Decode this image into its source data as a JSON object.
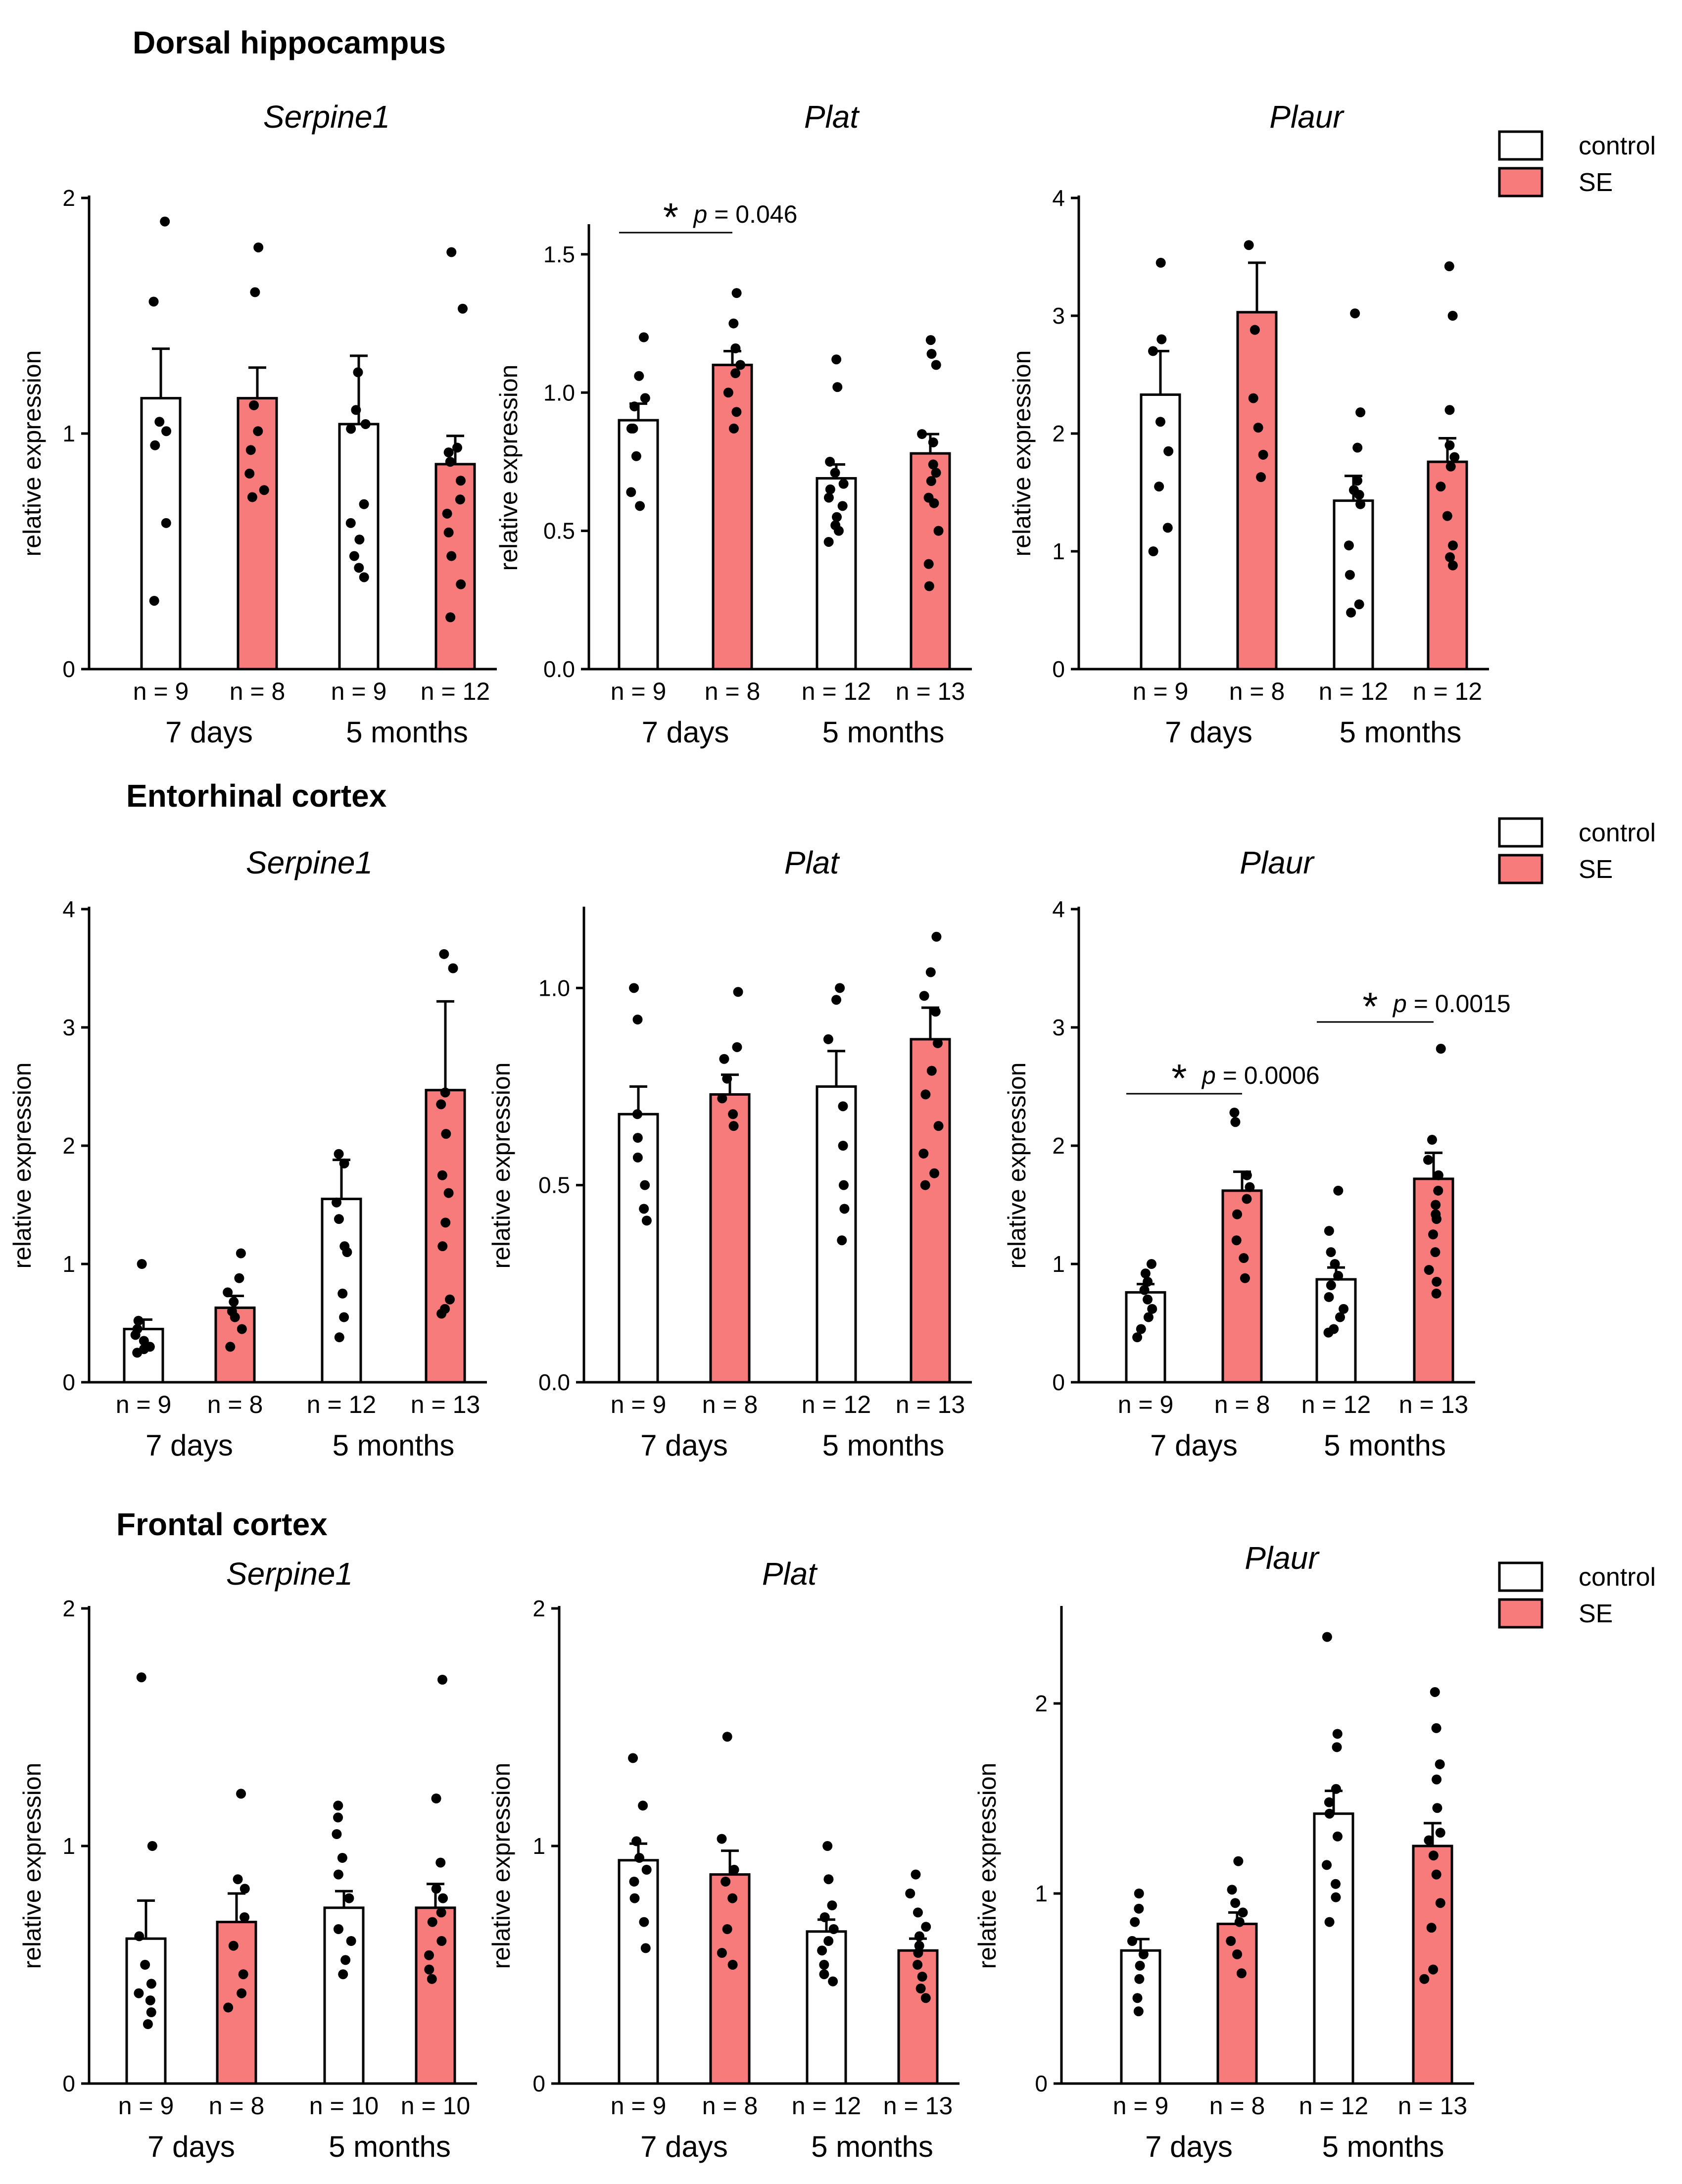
{
  "colors": {
    "control_fill": "#ffffff",
    "se_fill": "#f77b7b",
    "stroke": "#000000",
    "dot": "#000000"
  },
  "legend": {
    "control": "control",
    "se": "SE"
  },
  "chart_data": [
    {
      "type": "bar",
      "region": "Dorsal hippocampus",
      "title": "Serpine1",
      "ylabel": "relative expression",
      "ylim": [
        0,
        2
      ],
      "yticks": [
        "0",
        "1",
        "2"
      ],
      "categories": [
        "7 days",
        "5 months"
      ],
      "n_labels": [
        "n = 9",
        "n = 8",
        "n = 9",
        "n = 12"
      ],
      "series": [
        {
          "name": "control",
          "values": [
            1.15,
            1.04
          ],
          "sem": [
            0.21,
            0.29
          ]
        },
        {
          "name": "SE",
          "values": [
            1.15,
            0.87
          ],
          "sem": [
            0.13,
            0.12
          ]
        }
      ],
      "points": [
        [
          1.9,
          1.56,
          1.05,
          1.01,
          0.95,
          0.62,
          0.29
        ],
        [
          1.79,
          1.6,
          1.12,
          1.01,
          0.93,
          0.83,
          0.76,
          0.73
        ],
        [
          1.26,
          1.1,
          1.04,
          1.02,
          0.7,
          0.62,
          0.55,
          0.48,
          0.43,
          0.39
        ],
        [
          1.77,
          1.53,
          0.94,
          0.92,
          0.88,
          0.8,
          0.72,
          0.66,
          0.58,
          0.48,
          0.36,
          0.22
        ]
      ]
    },
    {
      "type": "bar",
      "region": "Dorsal hippocampus",
      "title": "Plat",
      "ylabel": "relative expression",
      "ylim": [
        0,
        1.6
      ],
      "yticks": [
        "0.0",
        "0.5",
        "1.0",
        "1.5"
      ],
      "categories": [
        "7 days",
        "5 months"
      ],
      "n_labels": [
        "n = 9",
        "n = 8",
        "n = 12",
        "n = 13"
      ],
      "series": [
        {
          "name": "control",
          "values": [
            0.9,
            0.69
          ],
          "sem": [
            0.06,
            0.05
          ]
        },
        {
          "name": "SE",
          "values": [
            1.1,
            0.78
          ],
          "sem": [
            0.05,
            0.07
          ]
        }
      ],
      "points": [
        [
          1.2,
          1.06,
          0.98,
          0.95,
          0.87,
          0.87,
          0.77,
          0.64,
          0.59
        ],
        [
          1.36,
          1.25,
          1.16,
          1.1,
          1.07,
          1.0,
          0.93,
          0.87
        ],
        [
          1.12,
          1.02,
          0.75,
          0.71,
          0.67,
          0.65,
          0.62,
          0.59,
          0.55,
          0.52,
          0.5,
          0.46
        ],
        [
          1.19,
          1.14,
          1.1,
          0.85,
          0.82,
          0.74,
          0.71,
          0.68,
          0.62,
          0.6,
          0.5,
          0.38,
          0.3
        ]
      ],
      "significance": [
        {
          "bars": [
            0,
            1
          ],
          "star": "*",
          "p_symbol": "p",
          "p_text": "= 0.046"
        }
      ]
    },
    {
      "type": "bar",
      "region": "Dorsal hippocampus",
      "title": "Plaur",
      "ylabel": "relative expression",
      "ylim": [
        0,
        4
      ],
      "yticks": [
        "0",
        "1",
        "2",
        "3",
        "4"
      ],
      "categories": [
        "7 days",
        "5 months"
      ],
      "n_labels": [
        "n = 9",
        "n = 8",
        "n = 12",
        "n = 12"
      ],
      "series": [
        {
          "name": "control",
          "values": [
            2.33,
            1.43
          ],
          "sem": [
            0.37,
            0.21
          ]
        },
        {
          "name": "SE",
          "values": [
            3.03,
            1.76
          ],
          "sem": [
            0.42,
            0.2
          ]
        }
      ],
      "points": [
        [
          3.45,
          2.8,
          2.7,
          2.1,
          1.85,
          1.55,
          1.2,
          1.0
        ],
        [
          3.6,
          2.88,
          2.3,
          2.05,
          1.82,
          1.63
        ],
        [
          3.02,
          2.18,
          1.88,
          1.6,
          1.52,
          1.48,
          1.4,
          1.05,
          0.8,
          0.55,
          0.48
        ],
        [
          3.42,
          3.0,
          2.2,
          1.9,
          1.8,
          1.72,
          1.55,
          1.3,
          1.05,
          0.95,
          0.88
        ]
      ]
    },
    {
      "type": "bar",
      "region": "Entorhinal cortex",
      "title": "Serpine1",
      "ylabel": "relative expression",
      "ylim": [
        0,
        4
      ],
      "yticks": [
        "0",
        "1",
        "2",
        "3",
        "4"
      ],
      "categories": [
        "7 days",
        "5 months"
      ],
      "n_labels": [
        "n = 9",
        "n = 8",
        "n = 12",
        "n = 13"
      ],
      "series": [
        {
          "name": "control",
          "values": [
            0.45,
            1.55
          ],
          "sem": [
            0.08,
            0.33
          ]
        },
        {
          "name": "SE",
          "values": [
            0.63,
            2.47
          ],
          "sem": [
            0.1,
            0.75
          ]
        }
      ],
      "points": [
        [
          1.0,
          0.52,
          0.45,
          0.4,
          0.35,
          0.3,
          0.28,
          0.25
        ],
        [
          1.09,
          0.88,
          0.76,
          0.68,
          0.6,
          0.55,
          0.45,
          0.3
        ],
        [
          1.93,
          1.85,
          1.52,
          1.38,
          1.15,
          1.1,
          0.75,
          0.55,
          0.38
        ],
        [
          3.62,
          3.5,
          2.45,
          2.35,
          2.1,
          1.75,
          1.6,
          1.35,
          1.15,
          0.7,
          0.62,
          0.58
        ]
      ]
    },
    {
      "type": "bar",
      "region": "Entorhinal cortex",
      "title": "Plat",
      "ylabel": "relative expression",
      "ylim": [
        0,
        1.2
      ],
      "yticks": [
        "0.0",
        "0.5",
        "1.0"
      ],
      "categories": [
        "7 days",
        "5 months"
      ],
      "n_labels": [
        "n = 9",
        "n = 8",
        "n = 12",
        "n = 13"
      ],
      "series": [
        {
          "name": "control",
          "values": [
            0.68,
            0.75
          ],
          "sem": [
            0.07,
            0.09
          ]
        },
        {
          "name": "SE",
          "values": [
            0.73,
            0.87
          ],
          "sem": [
            0.05,
            0.08
          ]
        }
      ],
      "points": [
        [
          1.0,
          0.92,
          0.68,
          0.62,
          0.57,
          0.5,
          0.44,
          0.41
        ],
        [
          0.99,
          0.85,
          0.82,
          0.77,
          0.72,
          0.68,
          0.65
        ],
        [
          1.0,
          0.97,
          0.87,
          0.7,
          0.6,
          0.5,
          0.44,
          0.36
        ],
        [
          1.13,
          1.04,
          0.98,
          0.94,
          0.86,
          0.79,
          0.73,
          0.65,
          0.58,
          0.53,
          0.5
        ]
      ]
    },
    {
      "type": "bar",
      "region": "Entorhinal cortex",
      "title": "Plaur",
      "ylabel": "relative expression",
      "ylim": [
        0,
        4
      ],
      "yticks": [
        "0",
        "1",
        "2",
        "3",
        "4"
      ],
      "categories": [
        "7 days",
        "5 months"
      ],
      "n_labels": [
        "n = 9",
        "n = 8",
        "n = 12",
        "n = 13"
      ],
      "series": [
        {
          "name": "control",
          "values": [
            0.76,
            0.87
          ],
          "sem": [
            0.07,
            0.1
          ]
        },
        {
          "name": "SE",
          "values": [
            1.62,
            1.72
          ],
          "sem": [
            0.16,
            0.22
          ]
        }
      ],
      "points": [
        [
          1.0,
          0.92,
          0.85,
          0.78,
          0.7,
          0.62,
          0.55,
          0.45,
          0.38
        ],
        [
          2.28,
          2.2,
          1.75,
          1.65,
          1.55,
          1.42,
          1.2,
          1.05,
          0.88
        ],
        [
          1.62,
          1.28,
          1.1,
          1.0,
          0.9,
          0.82,
          0.72,
          0.62,
          0.55,
          0.45,
          0.42
        ],
        [
          2.82,
          2.05,
          1.88,
          1.75,
          1.62,
          1.5,
          1.42,
          1.38,
          1.25,
          1.1,
          0.95,
          0.85,
          0.75
        ]
      ],
      "significance": [
        {
          "bars": [
            0,
            1
          ],
          "star": "*",
          "p_symbol": "p",
          "p_text": "= 0.0006"
        },
        {
          "bars": [
            2,
            3
          ],
          "star": "*",
          "p_symbol": "p",
          "p_text": "= 0.0015"
        }
      ]
    },
    {
      "type": "bar",
      "region": "Frontal cortex",
      "title": "Serpine1",
      "ylabel": "relative expression",
      "ylim": [
        0,
        2
      ],
      "yticks": [
        "0",
        "1",
        "2"
      ],
      "categories": [
        "7 days",
        "5 months"
      ],
      "n_labels": [
        "n = 9",
        "n = 8",
        "n = 10",
        "n = 10"
      ],
      "series": [
        {
          "name": "control",
          "values": [
            0.61,
            0.74
          ],
          "sem": [
            0.16,
            0.07
          ]
        },
        {
          "name": "SE",
          "values": [
            0.68,
            0.74
          ],
          "sem": [
            0.12,
            0.1
          ]
        }
      ],
      "points": [
        [
          1.71,
          1.0,
          0.62,
          0.5,
          0.42,
          0.38,
          0.35,
          0.3,
          0.25
        ],
        [
          1.22,
          0.86,
          0.82,
          0.7,
          0.58,
          0.46,
          0.38,
          0.32
        ],
        [
          1.17,
          1.12,
          1.05,
          0.95,
          0.88,
          0.78,
          0.65,
          0.6,
          0.52,
          0.46
        ],
        [
          1.7,
          1.2,
          0.93,
          0.82,
          0.78,
          0.72,
          0.68,
          0.6,
          0.54,
          0.48,
          0.44
        ]
      ]
    },
    {
      "type": "bar",
      "region": "Frontal cortex",
      "title": "Plat",
      "ylabel": "relative expression",
      "ylim": [
        0,
        2
      ],
      "yticks": [
        "0",
        "1",
        "2"
      ],
      "categories": [
        "7 days",
        "5 months"
      ],
      "n_labels": [
        "n = 9",
        "n = 8",
        "n = 12",
        "n = 13"
      ],
      "series": [
        {
          "name": "control",
          "values": [
            0.94,
            0.64
          ],
          "sem": [
            0.07,
            0.05
          ]
        },
        {
          "name": "SE",
          "values": [
            0.88,
            0.56
          ],
          "sem": [
            0.1,
            0.05
          ]
        }
      ],
      "points": [
        [
          1.37,
          1.17,
          1.02,
          0.95,
          0.9,
          0.85,
          0.78,
          0.68,
          0.57
        ],
        [
          1.46,
          1.03,
          0.9,
          0.85,
          0.78,
          0.65,
          0.55,
          0.5
        ],
        [
          1.0,
          0.86,
          0.75,
          0.7,
          0.65,
          0.6,
          0.56,
          0.5,
          0.46,
          0.43
        ],
        [
          0.88,
          0.8,
          0.72,
          0.66,
          0.62,
          0.58,
          0.55,
          0.5,
          0.45,
          0.4,
          0.36
        ]
      ]
    },
    {
      "type": "bar",
      "region": "Frontal cortex",
      "title": "Plaur",
      "ylabel": "relative expression",
      "ylim": [
        0,
        2.5
      ],
      "yticks": [
        "0",
        "1",
        "2"
      ],
      "categories": [
        "7 days",
        "5 months"
      ],
      "n_labels": [
        "n = 9",
        "n = 8",
        "n = 12",
        "n = 13"
      ],
      "series": [
        {
          "name": "control",
          "values": [
            0.7,
            1.42
          ],
          "sem": [
            0.06,
            0.12
          ]
        },
        {
          "name": "SE",
          "values": [
            0.84,
            1.25
          ],
          "sem": [
            0.06,
            0.12
          ]
        }
      ],
      "points": [
        [
          1.0,
          0.92,
          0.85,
          0.75,
          0.68,
          0.62,
          0.55,
          0.45,
          0.38
        ],
        [
          1.17,
          1.02,
          0.95,
          0.9,
          0.85,
          0.75,
          0.68,
          0.58
        ],
        [
          2.35,
          1.84,
          1.77,
          1.55,
          1.48,
          1.42,
          1.3,
          1.15,
          1.05,
          0.98,
          0.85
        ],
        [
          2.06,
          1.87,
          1.68,
          1.6,
          1.45,
          1.32,
          1.28,
          1.2,
          1.1,
          0.95,
          0.82,
          0.6,
          0.55
        ]
      ]
    }
  ]
}
